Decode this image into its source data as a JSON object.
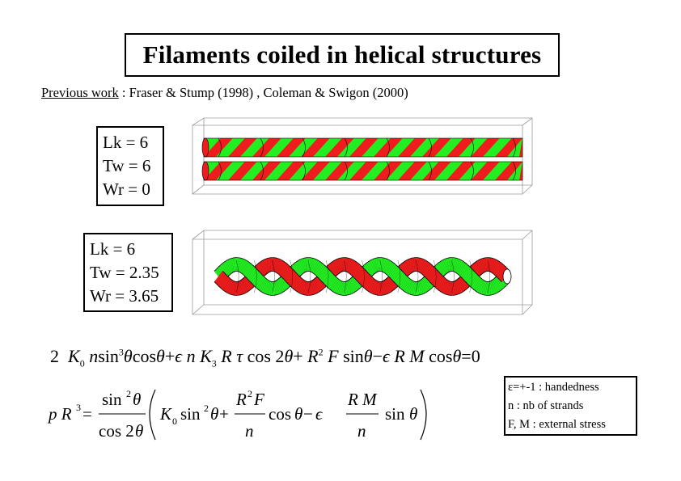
{
  "title": "Filaments coiled in helical structures",
  "previous_work": {
    "label": "Previous work",
    "text": " : Fraser & Stump (1998) , Coleman & Swigon (2000)"
  },
  "panel_top": {
    "lk": "Lk  = 6",
    "tw": "Tw = 6",
    "wr": "Wr = 0"
  },
  "panel_bottom": {
    "lk": "Lk  = 6",
    "tw": "Tw = 2.35",
    "wr": "Wr = 3.65"
  },
  "legend": {
    "line1": "ε=+-1 : handedness",
    "line2": "n : nb of strands",
    "line3": "F, M : external stress"
  },
  "colors": {
    "strand_red": "#ee1c1c",
    "strand_green": "#22ee22",
    "outline": "#000000"
  },
  "equation1": "2 K0 n sin3 θ cos θ + ε n K3 R τ cos 2θ + R2 F sin θ − ε R M cos θ = 0",
  "equation2": "p R3 = (sin2 θ / cos 2θ) ( K0 sin2 θ + (R2 F / n) cos θ − ε (R M / n) sin θ )"
}
